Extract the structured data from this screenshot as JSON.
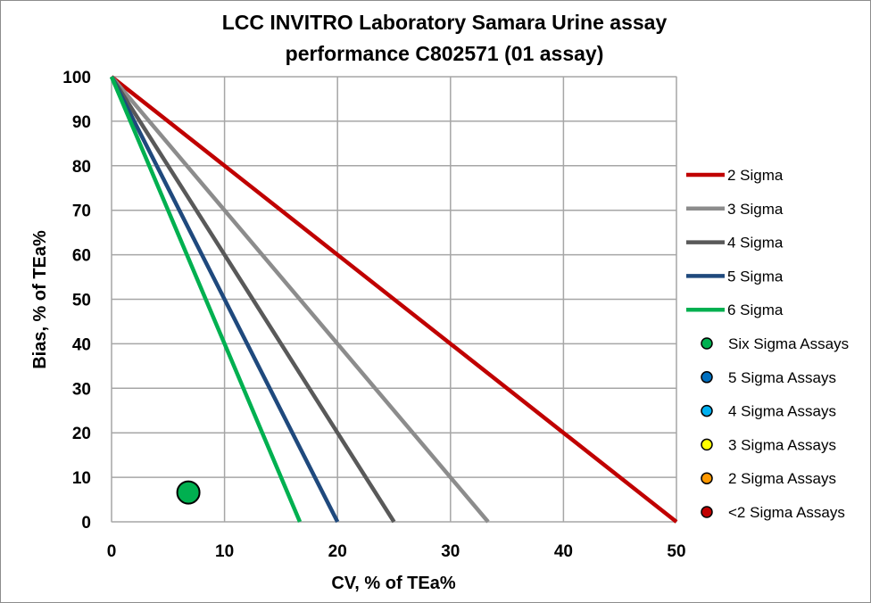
{
  "chart_data": {
    "type": "scatter",
    "title_lines": [
      "LCC INVITRO Laboratory Samara Urine assay",
      "performance C802571 (01 assay)"
    ],
    "xlabel": "CV, % of TEa%",
    "ylabel": "Bias, % of TEa%",
    "xlim": [
      0,
      50
    ],
    "ylim": [
      0,
      100
    ],
    "x_ticks": [
      0,
      10,
      20,
      30,
      40,
      50
    ],
    "y_ticks": [
      0,
      10,
      20,
      30,
      40,
      50,
      60,
      70,
      80,
      90,
      100
    ],
    "grid": true,
    "legend_position": "right",
    "series": [
      {
        "name": "2 Sigma",
        "kind": "line",
        "color": "#c00000",
        "points": [
          [
            0,
            100
          ],
          [
            50,
            0
          ]
        ]
      },
      {
        "name": "3 Sigma",
        "kind": "line",
        "color": "#8c8c8c",
        "points": [
          [
            0,
            100
          ],
          [
            33.33,
            0
          ]
        ]
      },
      {
        "name": "4 Sigma",
        "kind": "line",
        "color": "#595959",
        "points": [
          [
            0,
            100
          ],
          [
            25,
            0
          ]
        ]
      },
      {
        "name": "5 Sigma",
        "kind": "line",
        "color": "#1f497d",
        "points": [
          [
            0,
            100
          ],
          [
            20,
            0
          ]
        ]
      },
      {
        "name": "6 Sigma",
        "kind": "line",
        "color": "#00b050",
        "points": [
          [
            0,
            100
          ],
          [
            16.67,
            0
          ]
        ]
      },
      {
        "name": "Six Sigma Assays",
        "kind": "marker",
        "color": "#00b050",
        "points": [
          [
            6.8,
            6.6
          ]
        ]
      },
      {
        "name": "5 Sigma Assays",
        "kind": "marker",
        "color": "#0070c0",
        "points": []
      },
      {
        "name": "4 Sigma Assays",
        "kind": "marker",
        "color": "#00b0f0",
        "points": []
      },
      {
        "name": "3 Sigma Assays",
        "kind": "marker",
        "color": "#ffff00",
        "points": []
      },
      {
        "name": "2 Sigma Assays",
        "kind": "marker",
        "color": "#ff9900",
        "points": []
      },
      {
        "name": "<2 Sigma Assays",
        "kind": "marker",
        "color": "#c00000",
        "points": []
      }
    ]
  }
}
